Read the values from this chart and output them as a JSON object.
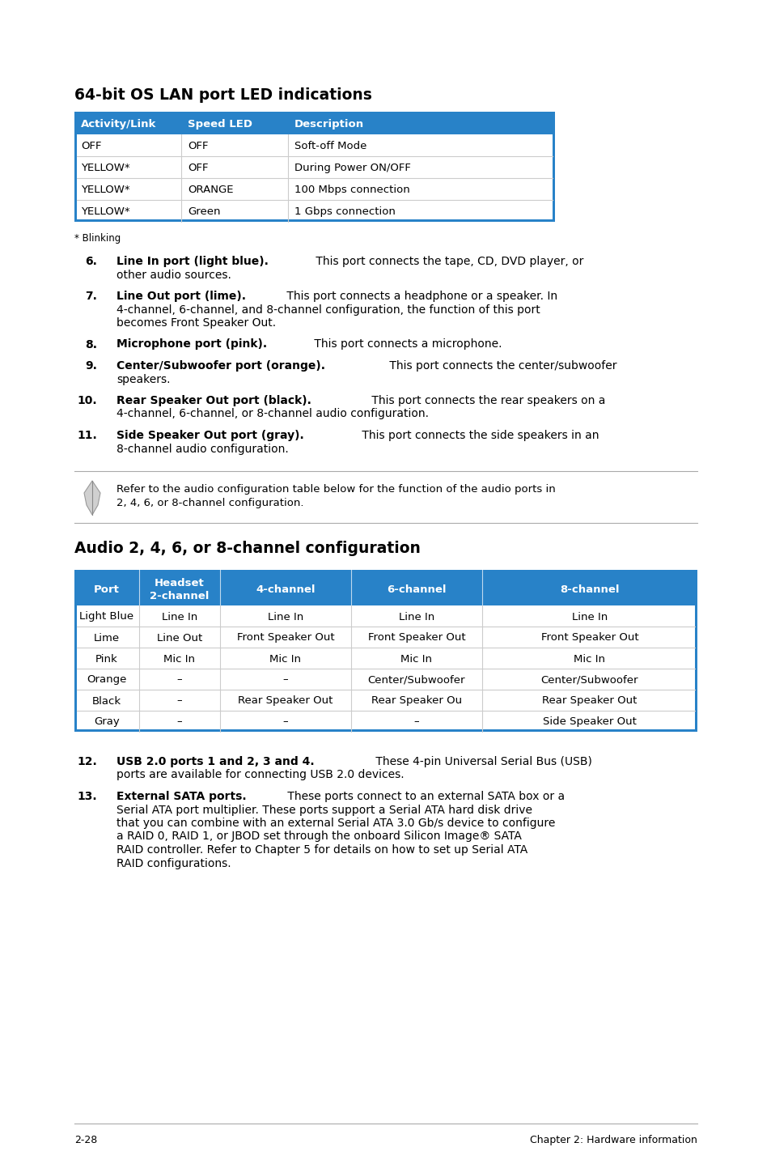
{
  "page_bg": "#ffffff",
  "header_blue": "#2882C8",
  "header_text_color": "#ffffff",
  "table_row_border": "#cccccc",
  "body_text_color": "#000000",
  "title1": "64-bit OS LAN port LED indications",
  "table1_headers": [
    "Activity/Link",
    "Speed LED",
    "Description"
  ],
  "table1_rows": [
    [
      "OFF",
      "OFF",
      "Soft-off Mode"
    ],
    [
      "YELLOW*",
      "OFF",
      "During Power ON/OFF"
    ],
    [
      "YELLOW*",
      "ORANGE",
      "100 Mbps connection"
    ],
    [
      "YELLOW*",
      "Green",
      "1 Gbps connection"
    ]
  ],
  "table1_footnote": "* Blinking",
  "items": [
    {
      "num": "6.",
      "bold": "Line In port (light blue).",
      "rest_lines": [
        " This port connects the tape, CD, DVD player, or",
        "other audio sources."
      ]
    },
    {
      "num": "7.",
      "bold": "Line Out port (lime).",
      "rest_lines": [
        " This port connects a headphone or a speaker. In",
        "4-channel, 6-channel, and 8-channel configuration, the function of this port",
        "becomes Front Speaker Out."
      ]
    },
    {
      "num": "8.",
      "bold": "Microphone port (pink).",
      "rest_lines": [
        " This port connects a microphone."
      ]
    },
    {
      "num": "9.",
      "bold": "Center/Subwoofer port (orange).",
      "rest_lines": [
        " This port connects the center/subwoofer",
        "speakers."
      ]
    },
    {
      "num": "10.",
      "bold": "Rear Speaker Out port (black).",
      "rest_lines": [
        " This port connects the rear speakers on a",
        "4-channel, 6-channel, or 8-channel audio configuration."
      ]
    },
    {
      "num": "11.",
      "bold": "Side Speaker Out port (gray).",
      "rest_lines": [
        " This port connects the side speakers in an",
        "8-channel audio configuration."
      ]
    }
  ],
  "note_text_line1": "Refer to the audio configuration table below for the function of the audio ports in",
  "note_text_line2": "2, 4, 6, or 8-channel configuration.",
  "title2": "Audio 2, 4, 6, or 8-channel configuration",
  "table2_headers": [
    "Port",
    "Headset\n2-channel",
    "4-channel",
    "6-channel",
    "8-channel"
  ],
  "table2_rows": [
    [
      "Light Blue",
      "Line In",
      "Line In",
      "Line In",
      "Line In"
    ],
    [
      "Lime",
      "Line Out",
      "Front Speaker Out",
      "Front Speaker Out",
      "Front Speaker Out"
    ],
    [
      "Pink",
      "Mic In",
      "Mic In",
      "Mic In",
      "Mic In"
    ],
    [
      "Orange",
      "–",
      "–",
      "Center/Subwoofer",
      "Center/Subwoofer"
    ],
    [
      "Black",
      "–",
      "Rear Speaker Out",
      "Rear Speaker Ou",
      "Rear Speaker Out"
    ],
    [
      "Gray",
      "–",
      "–",
      "–",
      "Side Speaker Out"
    ]
  ],
  "items2": [
    {
      "num": "12.",
      "bold": "USB 2.0 ports 1 and 2, 3 and 4.",
      "rest_lines": [
        " These 4-pin Universal Serial Bus (USB)",
        "ports are available for connecting USB 2.0 devices."
      ]
    },
    {
      "num": "13.",
      "bold": "External SATA ports.",
      "rest_lines": [
        " These ports connect to an external SATA box or a",
        "Serial ATA port multiplier. These ports support a Serial ATA hard disk drive",
        "that you can combine with an external Serial ATA 3.0 Gb/s device to configure",
        "a RAID 0, RAID 1, or JBOD set through the onboard Silicon Image® SATA",
        "RAID controller. Refer to Chapter 5 for details on how to set up Serial ATA",
        "RAID configurations."
      ]
    }
  ],
  "footer_left": "2-28",
  "footer_right": "Chapter 2: Hardware information"
}
